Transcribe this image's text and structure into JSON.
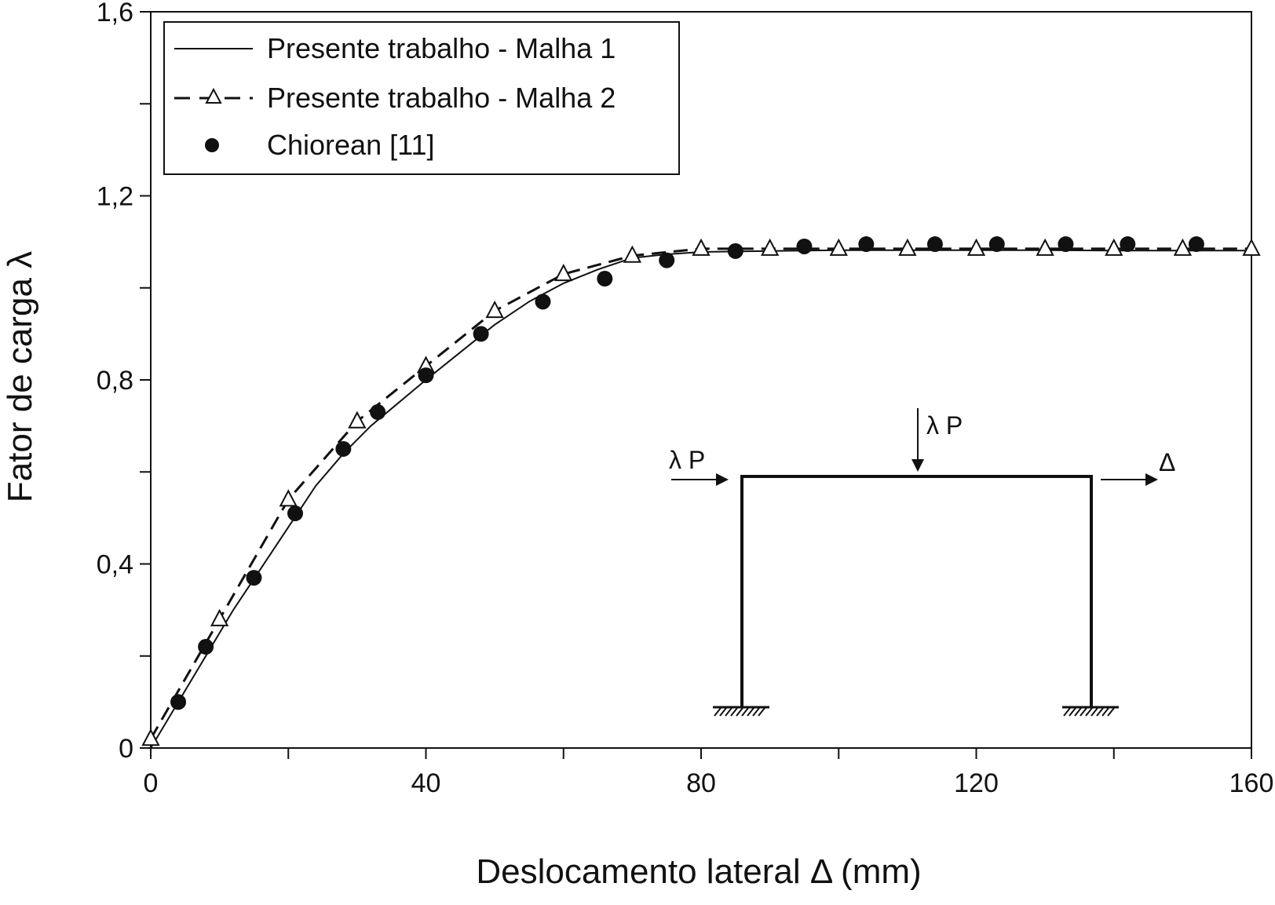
{
  "chart_data": {
    "type": "line",
    "title": "",
    "xlabel": "Deslocamento lateral Δ (mm)",
    "ylabel": "Fator de carga λ",
    "xlim": [
      0,
      160
    ],
    "ylim": [
      0,
      1.6
    ],
    "x_ticks": [
      0,
      40,
      80,
      120,
      160
    ],
    "x_tick_labels": [
      "0",
      "40",
      "80",
      "120",
      "160"
    ],
    "y_ticks": [
      0,
      0.4,
      0.8,
      1.2,
      1.6
    ],
    "y_tick_labels": [
      "0",
      "0,4",
      "0,8",
      "1,2",
      "1,6"
    ],
    "grid": false,
    "legend_position": "top-left",
    "series": [
      {
        "name": "Presente trabalho - Malha 1",
        "style": "solid-line",
        "color": "#111111",
        "x": [
          0,
          4,
          8,
          12,
          16,
          20,
          24,
          28,
          32,
          36,
          40,
          45,
          50,
          55,
          60,
          65,
          70,
          75,
          80,
          90,
          100,
          110,
          120,
          130,
          140,
          150,
          160
        ],
        "y": [
          0,
          0.1,
          0.2,
          0.3,
          0.39,
          0.48,
          0.57,
          0.64,
          0.7,
          0.75,
          0.8,
          0.86,
          0.92,
          0.97,
          1.01,
          1.04,
          1.065,
          1.073,
          1.078,
          1.08,
          1.082,
          1.082,
          1.082,
          1.082,
          1.081,
          1.081,
          1.081
        ]
      },
      {
        "name": "Presente trabalho - Malha 2",
        "style": "dashed-line-triangles",
        "color": "#111111",
        "x": [
          0,
          10,
          20,
          30,
          40,
          50,
          60,
          70,
          80,
          90,
          100,
          110,
          120,
          130,
          140,
          150,
          160
        ],
        "y": [
          0.02,
          0.28,
          0.54,
          0.71,
          0.83,
          0.95,
          1.03,
          1.07,
          1.085,
          1.085,
          1.085,
          1.085,
          1.085,
          1.085,
          1.085,
          1.085,
          1.085
        ]
      },
      {
        "name": "Chiorean [11]",
        "style": "markers-filled-circle",
        "color": "#111111",
        "x": [
          4,
          8,
          15,
          21,
          28,
          33,
          40,
          48,
          57,
          66,
          75,
          85,
          95,
          104,
          114,
          123,
          133,
          142,
          152
        ],
        "y": [
          0.1,
          0.22,
          0.37,
          0.51,
          0.65,
          0.73,
          0.81,
          0.9,
          0.97,
          1.02,
          1.06,
          1.08,
          1.09,
          1.095,
          1.095,
          1.095,
          1.095,
          1.095,
          1.095
        ]
      }
    ]
  },
  "diagram": {
    "label_left": "λ P",
    "label_top": "λ P",
    "label_right": "Δ"
  }
}
